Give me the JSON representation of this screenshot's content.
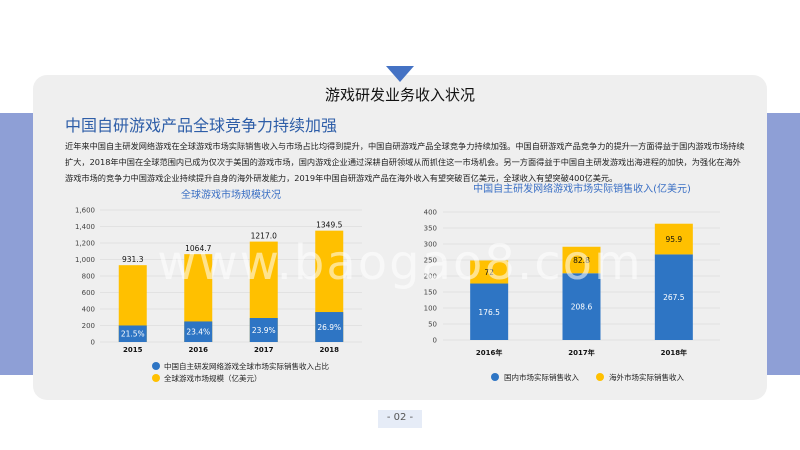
{
  "slide": {
    "title": "游戏研发业务收入状况",
    "heading": "中国自研游戏产品全球竞争力持续加强",
    "paragraph": "近年来中国自主研发网络游戏在全球游戏市场实际销售收入与市场占比均得到提升，中国自研游戏产品全球竞争力持续加强。中国自研游戏产品竞争力的提升一方面得益于国内游戏市场持续扩大，2018年中国在全球范围内已成为仅次于美国的游戏市场，国内游戏企业通过深耕自研领域从而抓住这一市场机会。另一方面得益于中国自主研发游戏出海进程的加快，为强化在海外游戏市场的竞争力中国游戏企业持续提升自身的海外研发能力，2019年中国自研游戏产品在海外收入有望突破百亿美元，全球收入有望突破400亿美元。",
    "watermark": "www.baogao8.com",
    "page_number": "- 02 -"
  },
  "chart_data": [
    {
      "type": "bar",
      "title": "全球游戏市场规模状况",
      "categories": [
        "2015",
        "2016",
        "2017",
        "2018"
      ],
      "ylim": [
        0,
        1600
      ],
      "yticks": [
        "0",
        "200",
        "400",
        "600",
        "800",
        "1,000",
        "1,200",
        "1,400",
        "1,600"
      ],
      "series": [
        {
          "name": "全球游戏市场规模（亿美元）",
          "values": [
            931.3,
            1064.7,
            1217.0,
            1349.5
          ],
          "labels": [
            "931.3",
            "1064.7",
            "1217.0",
            "1349.5"
          ],
          "color": "#ffc000"
        },
        {
          "name": "中国自主研发网络游戏全球市场实际销售收入占比",
          "values": [
            21.5,
            23.4,
            23.9,
            26.9
          ],
          "labels": [
            "21.5%",
            "23.4%",
            "23.9%",
            "26.9%"
          ],
          "unit": "%",
          "color": "#2e75c4"
        }
      ],
      "grid": true,
      "legend": "bottom"
    },
    {
      "type": "bar",
      "stacked": true,
      "title": "中国自主研发网络游戏市场实际销售收入(亿美元)",
      "categories": [
        "2016年",
        "2017年",
        "2018年"
      ],
      "ylim": [
        0,
        400
      ],
      "yticks": [
        "0",
        "50",
        "100",
        "150",
        "200",
        "250",
        "300",
        "350",
        "400"
      ],
      "series": [
        {
          "name": "国内市场实际销售收入",
          "values": [
            176.5,
            208.6,
            267.5
          ],
          "labels": [
            "176.5",
            "208.6",
            "267.5"
          ],
          "color": "#2e75c4"
        },
        {
          "name": "海外市场实际销售收入",
          "values": [
            72,
            82.8,
            95.9
          ],
          "labels": [
            "72",
            "82.8",
            "95.9"
          ],
          "color": "#ffc000"
        }
      ],
      "grid": true,
      "legend": "bottom"
    }
  ]
}
